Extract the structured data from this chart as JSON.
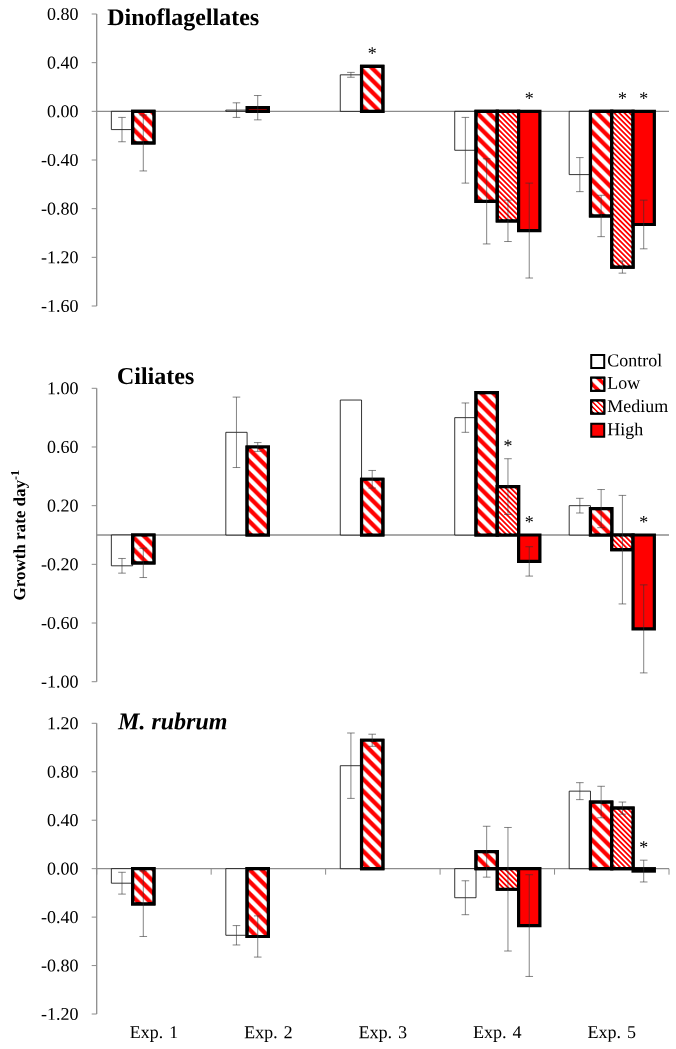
{
  "chart_data": [
    {
      "type": "bar",
      "title": "Dinoflagellates",
      "categories": [
        null,
        null,
        null,
        null,
        null
      ],
      "ylim": [
        -1.6,
        0.8
      ],
      "yticks": [
        {
          "value": 0.8,
          "label": "0.80"
        },
        {
          "value": 0.4,
          "label": "0.40"
        },
        {
          "value": 0,
          "label": "0.00"
        },
        {
          "value": -0.4,
          "label": "-0.40"
        },
        {
          "value": -0.8,
          "label": "-0.80"
        },
        {
          "value": -1.2,
          "label": "-1.20"
        },
        {
          "value": -1.6,
          "label": "-1.60"
        }
      ],
      "series": [
        {
          "color": "#ffffff",
          "values": [
            -0.15,
            0.01,
            0.3,
            -0.32,
            -0.52
          ],
          "errors": [
            0.1,
            0.06,
            0.02,
            0.27,
            0.14
          ]
        },
        {
          "color": "#ff0000",
          "values": [
            -0.26,
            0.03,
            0.37,
            -0.74,
            -0.86
          ],
          "errors": [
            0.23,
            0.1,
            null,
            0.35,
            0.17
          ],
          "value_labels": [
            null,
            null,
            "*",
            null,
            null
          ]
        },
        {
          "color": "#ff0000",
          "values": [
            null,
            null,
            null,
            -0.9,
            -1.28
          ],
          "errors": [
            null,
            null,
            null,
            0.17,
            0.05
          ],
          "value_labels": [
            null,
            null,
            null,
            null,
            "*"
          ]
        },
        {
          "color": "#ff0000",
          "values": [
            null,
            null,
            null,
            -0.98,
            -0.93
          ],
          "errors": [
            null,
            null,
            null,
            0.39,
            0.2
          ],
          "value_labels": [
            null,
            null,
            null,
            "*",
            "*"
          ]
        }
      ]
    },
    {
      "type": "bar",
      "title": "Ciliates",
      "ylabel": "Growth rate day$^{-1}$",
      "categories": [
        null,
        null,
        null,
        null,
        null
      ],
      "legend": "top right",
      "ylim": [
        -1.0,
        1.0
      ],
      "yticks": [
        {
          "value": 1.0,
          "label": "1.00"
        },
        {
          "value": 0.6,
          "label": "0.60"
        },
        {
          "value": 0.2,
          "label": "0.20"
        },
        {
          "value": -0.2,
          "label": "-0.20"
        },
        {
          "value": -0.6,
          "label": "-0.60"
        },
        {
          "value": -1.0,
          "label": "-1.00"
        }
      ],
      "series": [
        {
          "name": "Control",
          "color": "#ffffff",
          "values": [
            -0.21,
            0.7,
            0.92,
            0.8,
            0.2
          ],
          "errors": [
            0.05,
            0.24,
            null,
            0.1,
            0.05
          ]
        },
        {
          "name": "Low",
          "color": "#ff0000",
          "values": [
            -0.19,
            0.6,
            0.38,
            0.97,
            0.18
          ],
          "errors": [
            0.1,
            0.03,
            0.06,
            null,
            0.13
          ]
        },
        {
          "name": "Medium",
          "color": "#ff0000",
          "values": [
            null,
            null,
            null,
            0.33,
            -0.1
          ],
          "errors": [
            null,
            null,
            null,
            0.19,
            0.37
          ],
          "value_labels": [
            null,
            null,
            null,
            "*",
            null
          ]
        },
        {
          "name": "High",
          "color": "#ff0000",
          "values": [
            null,
            null,
            null,
            -0.18,
            -0.64
          ],
          "errors": [
            null,
            null,
            null,
            0.1,
            0.3
          ],
          "value_labels": [
            null,
            null,
            null,
            "*",
            "*"
          ]
        }
      ]
    },
    {
      "type": "bar",
      "title": "M. rubrum",
      "categories": [
        "Exp. 1",
        "Exp. 2",
        "Exp. 3",
        "Exp. 4",
        "Exp. 5"
      ],
      "ylim": [
        -1.2,
        1.2
      ],
      "yticks": [
        {
          "value": 1.2,
          "label": "1.20"
        },
        {
          "value": 0.8,
          "label": "0.80"
        },
        {
          "value": 0.4,
          "label": "0.40"
        },
        {
          "value": 0,
          "label": "0.00"
        },
        {
          "value": -0.4,
          "label": "-0.40"
        },
        {
          "value": -0.8,
          "label": "-0.80"
        },
        {
          "value": -1.2,
          "label": "-1.20"
        }
      ],
      "series": [
        {
          "color": "#ffffff",
          "values": [
            -0.12,
            -0.55,
            0.85,
            -0.24,
            0.64
          ],
          "errors": [
            0.09,
            0.08,
            0.27,
            0.14,
            0.07
          ]
        },
        {
          "color": "#ff0000",
          "values": [
            -0.29,
            -0.56,
            1.06,
            0.14,
            0.55
          ],
          "errors": [
            0.27,
            0.17,
            0.05,
            0.21,
            0.13
          ]
        },
        {
          "color": "#ff0000",
          "values": [
            null,
            null,
            null,
            -0.17,
            0.5
          ],
          "errors": [
            null,
            null,
            null,
            0.51,
            0.05
          ]
        },
        {
          "color": "#ff0000",
          "values": [
            null,
            null,
            null,
            -0.47,
            -0.02
          ],
          "errors": [
            null,
            null,
            null,
            0.42,
            0.09
          ],
          "value_labels": [
            null,
            null,
            null,
            null,
            "*"
          ]
        }
      ]
    }
  ]
}
